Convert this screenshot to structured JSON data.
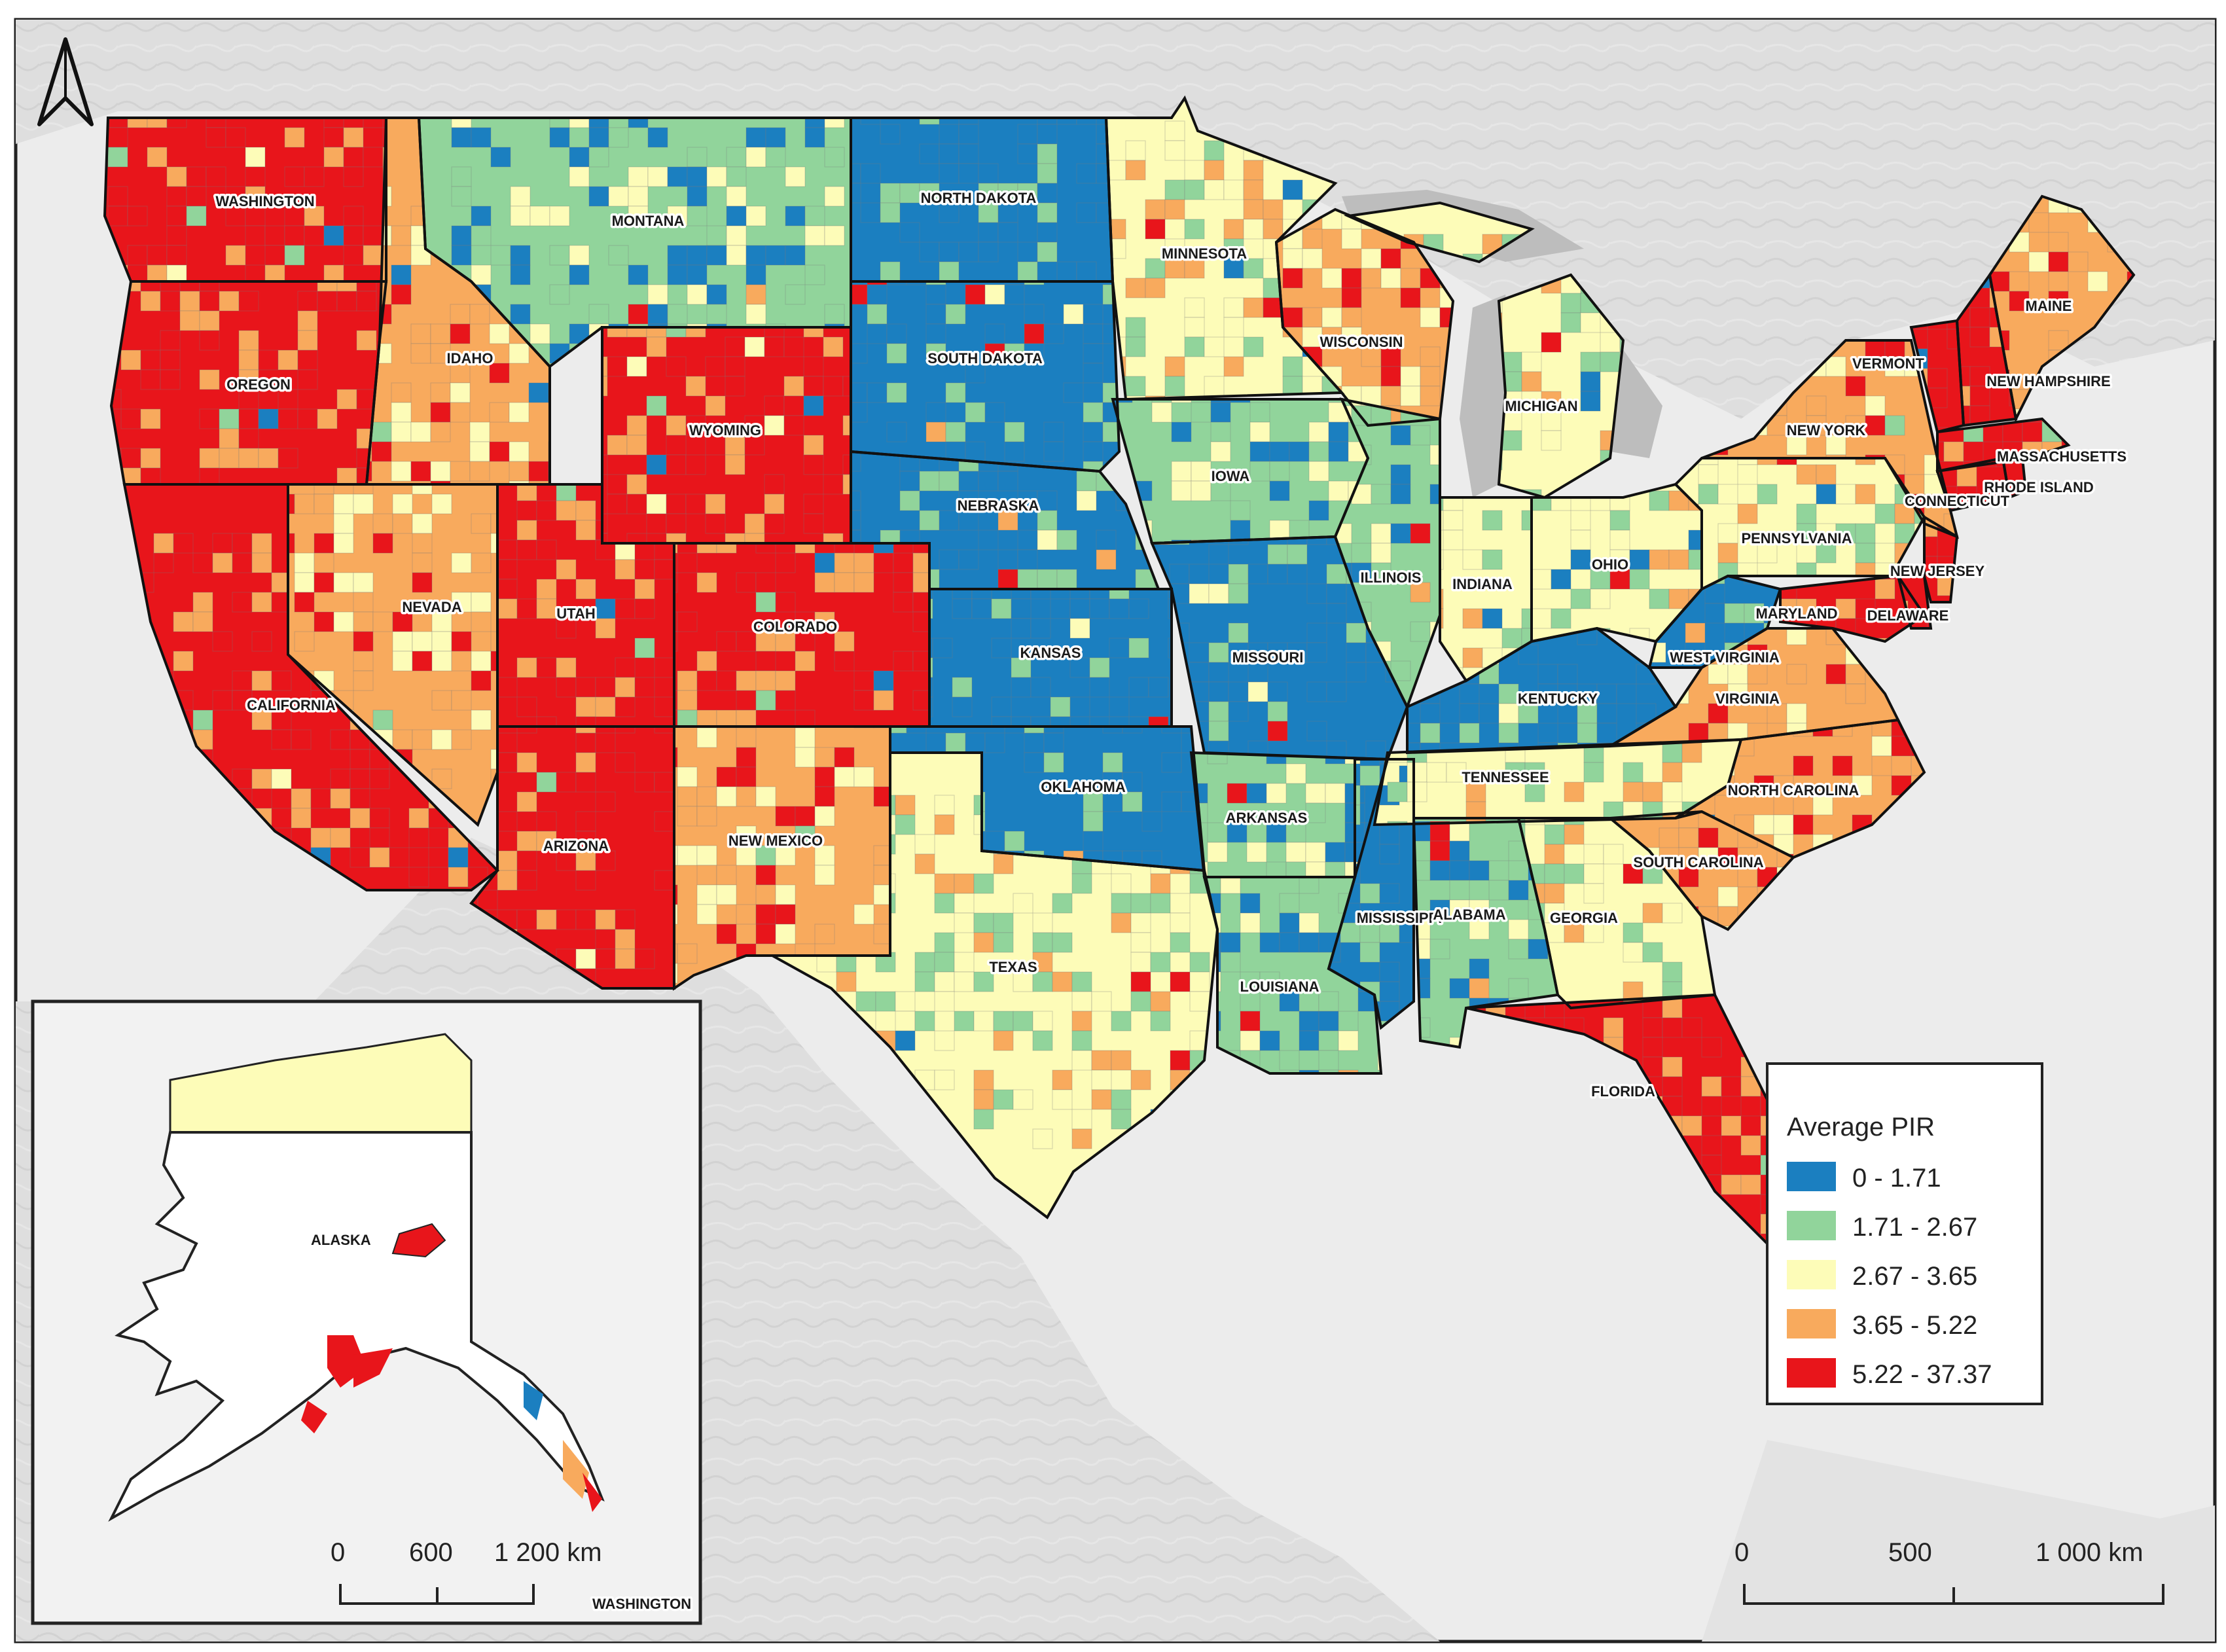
{
  "colors": {
    "bin1": "#1b7fc0",
    "bin2": "#91d49b",
    "bin3": "#fdfcb8",
    "bin4": "#f8aa5d",
    "bin5": "#e8151b",
    "land_bg": "#dcdcdc",
    "water": "#eaeaea"
  },
  "legend": {
    "title": "Average PIR",
    "bins": [
      {
        "label": "0 - 1.71",
        "color_key": "bin1"
      },
      {
        "label": "1.71 - 2.67",
        "color_key": "bin2"
      },
      {
        "label": "2.67 - 3.65",
        "color_key": "bin3"
      },
      {
        "label": "3.65 - 5.22",
        "color_key": "bin4"
      },
      {
        "label": "5.22 - 37.37",
        "color_key": "bin5"
      }
    ]
  },
  "scale_main": {
    "ticks": [
      "0",
      "500",
      "1 000 km"
    ]
  },
  "scale_inset": {
    "ticks": [
      "0",
      "600",
      "1 200 km"
    ]
  },
  "inset": {
    "alaska_label": "ALASKA",
    "washington_label": "WASHINGTON"
  },
  "states": [
    {
      "name": "WASHINGTON",
      "bin": 5
    },
    {
      "name": "OREGON",
      "bin": 5
    },
    {
      "name": "CALIFORNIA",
      "bin": 5
    },
    {
      "name": "IDAHO",
      "bin": 4
    },
    {
      "name": "NEVADA",
      "bin": 4
    },
    {
      "name": "MONTANA",
      "bin": 2
    },
    {
      "name": "WYOMING",
      "bin": 5
    },
    {
      "name": "UTAH",
      "bin": 5
    },
    {
      "name": "ARIZONA",
      "bin": 5
    },
    {
      "name": "COLORADO",
      "bin": 5
    },
    {
      "name": "NEW MEXICO",
      "bin": 4
    },
    {
      "name": "NORTH DAKOTA",
      "bin": 1
    },
    {
      "name": "SOUTH DAKOTA",
      "bin": 1
    },
    {
      "name": "NEBRASKA",
      "bin": 1
    },
    {
      "name": "KANSAS",
      "bin": 1
    },
    {
      "name": "OKLAHOMA",
      "bin": 1
    },
    {
      "name": "TEXAS",
      "bin": 3
    },
    {
      "name": "MINNESOTA",
      "bin": 3
    },
    {
      "name": "IOWA",
      "bin": 2
    },
    {
      "name": "MISSOURI",
      "bin": 1
    },
    {
      "name": "ARKANSAS",
      "bin": 2
    },
    {
      "name": "LOUISIANA",
      "bin": 2
    },
    {
      "name": "WISCONSIN",
      "bin": 4
    },
    {
      "name": "ILLINOIS",
      "bin": 2
    },
    {
      "name": "MISSISSIPPI",
      "bin": 1
    },
    {
      "name": "MICHIGAN",
      "bin": 3
    },
    {
      "name": "INDIANA",
      "bin": 3
    },
    {
      "name": "KENTUCKY",
      "bin": 1
    },
    {
      "name": "TENNESSEE",
      "bin": 3
    },
    {
      "name": "ALABAMA",
      "bin": 2
    },
    {
      "name": "OHIO",
      "bin": 3
    },
    {
      "name": "GEORGIA",
      "bin": 3
    },
    {
      "name": "FLORIDA",
      "bin": 5
    },
    {
      "name": "SOUTH CAROLINA",
      "bin": 4
    },
    {
      "name": "NORTH CAROLINA",
      "bin": 4
    },
    {
      "name": "VIRGINIA",
      "bin": 4
    },
    {
      "name": "WEST VIRGINIA",
      "bin": 1
    },
    {
      "name": "PENNSYLVANIA",
      "bin": 3
    },
    {
      "name": "NEW YORK",
      "bin": 4
    },
    {
      "name": "MARYLAND",
      "bin": 5
    },
    {
      "name": "DELAWARE",
      "bin": 5
    },
    {
      "name": "NEW JERSEY",
      "bin": 5
    },
    {
      "name": "CONNECTICUT",
      "bin": 5
    },
    {
      "name": "RHODE ISLAND",
      "bin": 5
    },
    {
      "name": "MASSACHUSETTS",
      "bin": 5
    },
    {
      "name": "VERMONT",
      "bin": 5
    },
    {
      "name": "NEW HAMPSHIRE",
      "bin": 5
    },
    {
      "name": "MAINE",
      "bin": 4
    }
  ]
}
